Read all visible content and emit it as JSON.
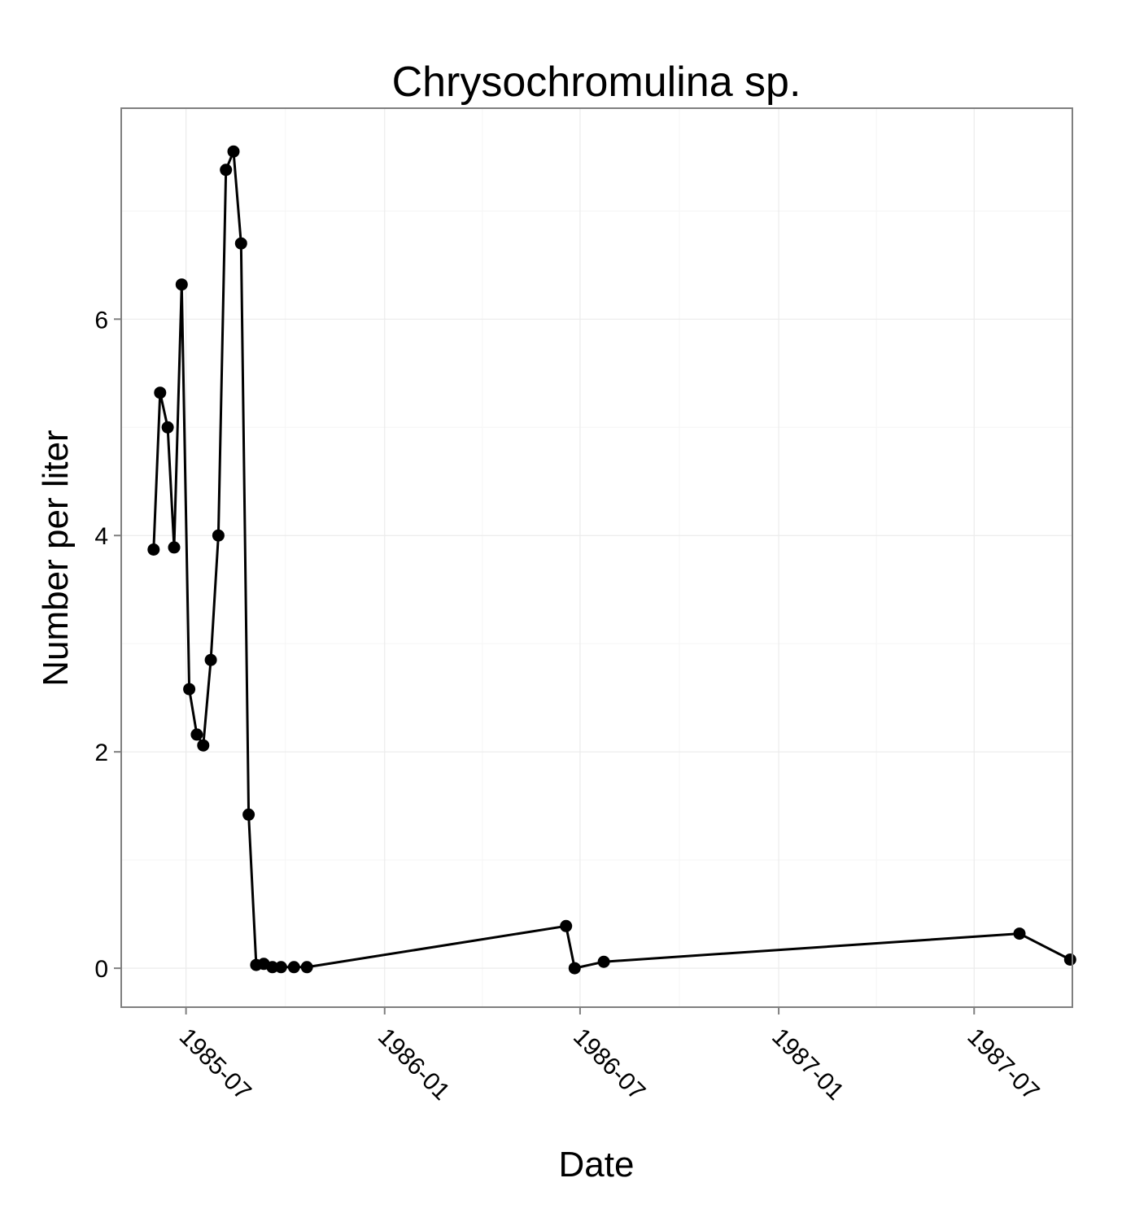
{
  "chart_data": {
    "type": "line",
    "title": "Chrysochromulina sp.",
    "xlabel": "Date",
    "ylabel": "Number per liter",
    "x_axis_type": "date",
    "xlim": [
      "1985-05-02",
      "1987-09-30"
    ],
    "ylim": [
      -0.36,
      7.95
    ],
    "x_ticks": [
      "1985-07",
      "1986-01",
      "1986-07",
      "1987-01",
      "1987-07"
    ],
    "y_ticks": [
      0,
      2,
      4,
      6
    ],
    "grid": true,
    "legend": "none",
    "series": [
      {
        "x": [
          "1985-06-01",
          "1985-06-07",
          "1985-06-14",
          "1985-06-20",
          "1985-06-27",
          "1985-07-04",
          "1985-07-11",
          "1985-07-17",
          "1985-07-24",
          "1985-07-31",
          "1985-08-07",
          "1985-08-14",
          "1985-08-21",
          "1985-08-28",
          "1985-09-04",
          "1985-09-11",
          "1985-09-19",
          "1985-09-27",
          "1985-10-09",
          "1985-10-21",
          "1986-06-18",
          "1986-06-26",
          "1986-07-23",
          "1987-08-12",
          "1987-09-28"
        ],
        "values": [
          3.87,
          5.32,
          5.0,
          3.89,
          6.32,
          2.58,
          2.16,
          2.06,
          2.85,
          4.0,
          7.38,
          7.55,
          6.7,
          1.42,
          0.03,
          0.04,
          0.01,
          0.01,
          0.01,
          0.01,
          0.39,
          0.0,
          0.06,
          0.32,
          0.08
        ]
      }
    ],
    "colors": {
      "series": "#000000",
      "panel_border": "#7f7f7f",
      "grid_major": "#ebebeb",
      "grid_minor": "#f5f5f5",
      "axis_tick": "#7f7f7f"
    }
  }
}
